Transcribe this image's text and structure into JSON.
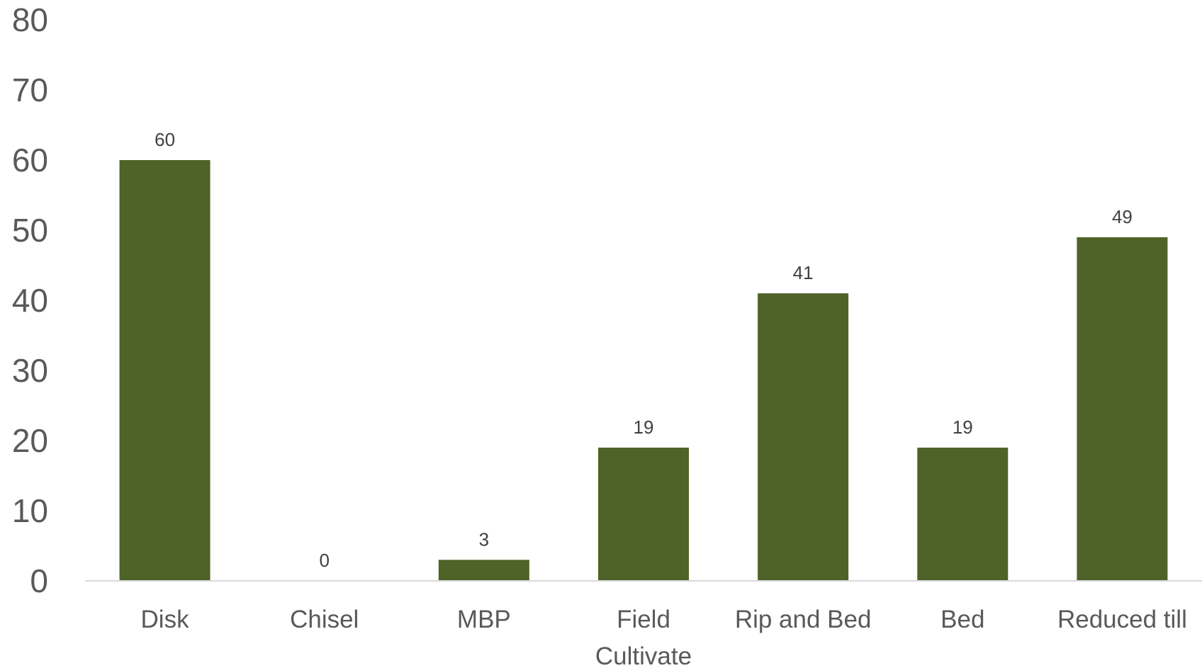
{
  "chart_data": {
    "type": "bar",
    "title": "",
    "xlabel": "",
    "ylabel": "",
    "categories": [
      [
        "Disk"
      ],
      [
        "Chisel"
      ],
      [
        "MBP"
      ],
      [
        "Field",
        "Cultivate"
      ],
      [
        "Rip and Bed"
      ],
      [
        "Bed"
      ],
      [
        "Reduced till"
      ]
    ],
    "values": [
      60,
      0,
      3,
      19,
      41,
      19,
      49
    ],
    "ylim": [
      0,
      80
    ],
    "yticks": [
      0,
      10,
      20,
      30,
      40,
      50,
      60,
      70,
      80
    ],
    "grid": false,
    "legend": "none",
    "data_labels": true,
    "colors": {
      "bar": "#4f6228",
      "axis": "#d9d9d9",
      "tick_text": "#595959",
      "label_text": "#404040"
    }
  }
}
